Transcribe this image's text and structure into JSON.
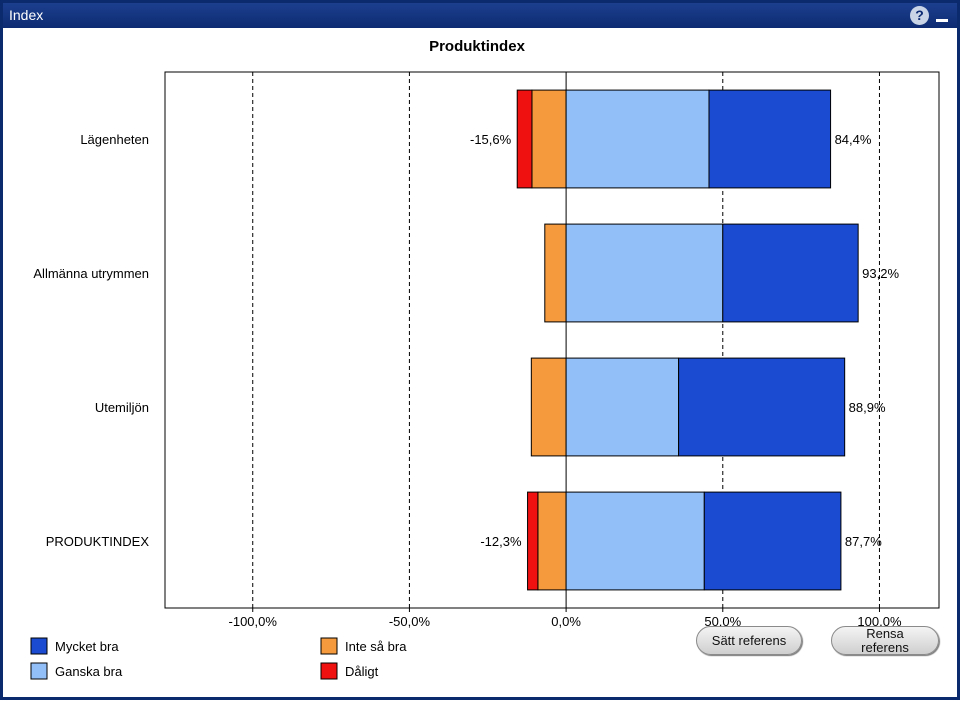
{
  "window": {
    "title": "Index"
  },
  "header": {
    "help_icon": "question-circle-icon",
    "minimize_icon": "minimize-icon"
  },
  "colors": {
    "mycket_bra": "#1a4bd1",
    "ganska_bra": "#93bff9",
    "inte_sa_bra": "#f59a3d",
    "daligt": "#ef1010",
    "window_title_bar": "#0d2b72"
  },
  "chart_data": {
    "type": "bar",
    "orientation": "horizontal",
    "stacked": true,
    "title": "Produktindex",
    "categories": [
      "Lägenheten",
      "Allmänna utrymmen",
      "Utemiljön",
      "PRODUKTINDEX"
    ],
    "series": [
      {
        "name": "Dåligt",
        "color": "#ef1010",
        "values": [
          -4.7,
          0,
          0,
          -3.3
        ]
      },
      {
        "name": "Inte så bra",
        "color": "#f59a3d",
        "values": [
          -10.9,
          -6.8,
          -11.1,
          -9.0
        ]
      },
      {
        "name": "Ganska bra",
        "color": "#93bff9",
        "values": [
          45.6,
          50.0,
          35.9,
          44.1
        ]
      },
      {
        "name": "Mycket bra",
        "color": "#1a4bd1",
        "values": [
          38.8,
          43.2,
          53.0,
          43.6
        ]
      }
    ],
    "negative_labels": [
      "-15,6%",
      "",
      "",
      "-12,3%"
    ],
    "positive_labels": [
      "84,4%",
      "93,2%",
      "88,9%",
      "87,7%"
    ],
    "xlim": [
      -128.0,
      119.0
    ],
    "xticks": [
      -100,
      -50,
      0,
      50,
      100
    ],
    "xtick_labels": [
      "-100,0%",
      "-50,0%",
      "0,0%",
      "50,0%",
      "100,0%"
    ],
    "grid": "vertical dashed",
    "legend": [
      {
        "label": "Mycket bra",
        "color": "#1a4bd1"
      },
      {
        "label": "Inte så bra",
        "color": "#f59a3d"
      },
      {
        "label": "Ganska bra",
        "color": "#93bff9"
      },
      {
        "label": "Dåligt",
        "color": "#ef1010"
      }
    ],
    "legend_position": "bottom-left"
  },
  "buttons": {
    "set_reference": "Sätt referens",
    "clear_reference": "Rensa referens"
  }
}
